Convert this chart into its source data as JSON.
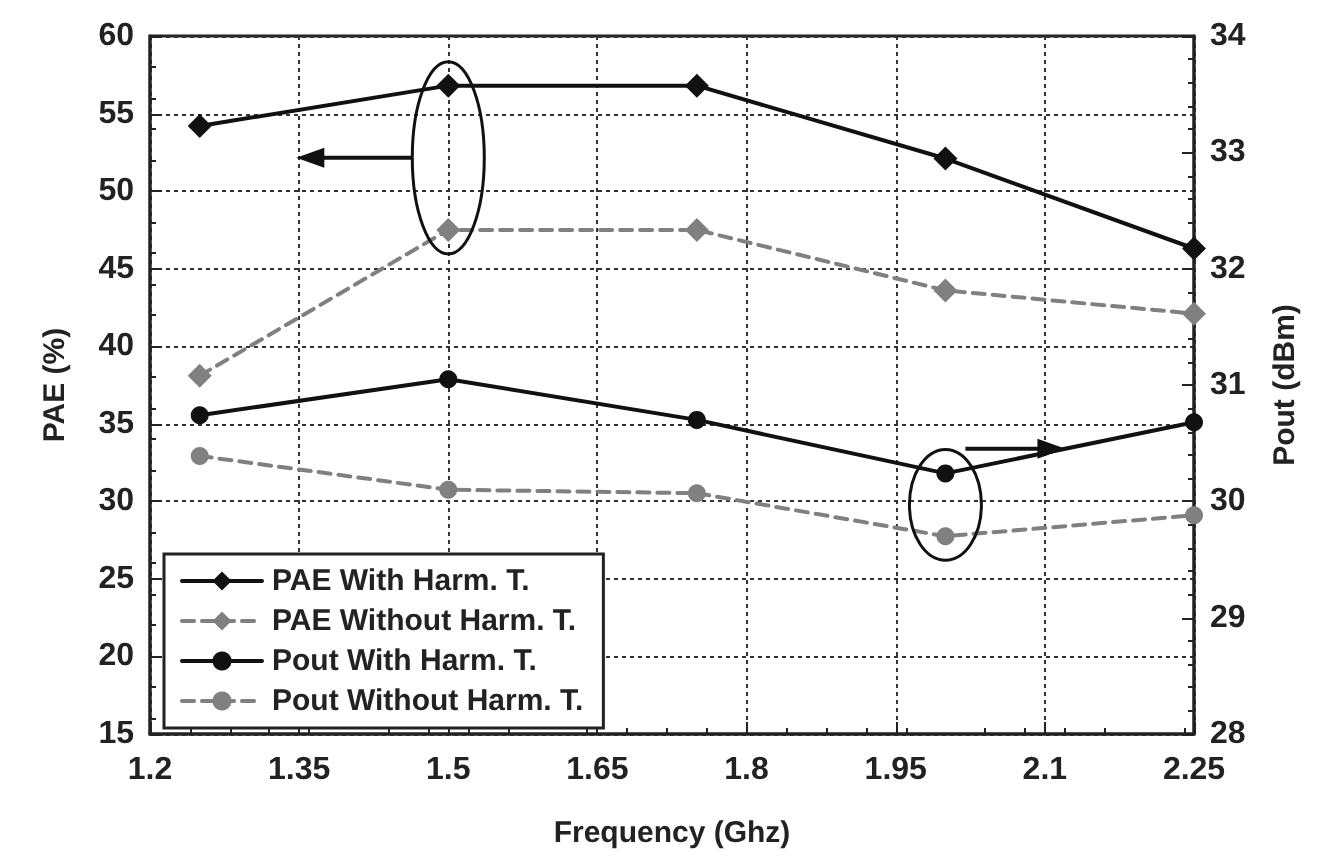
{
  "chart_data": {
    "type": "line",
    "xlabel": "Frequency (Ghz)",
    "ylabel": "PAE (%)",
    "y2label": "Pout (dBm)",
    "x": [
      1.25,
      1.5,
      1.75,
      2.0,
      2.25
    ],
    "series": [
      {
        "name": "PAE With Harm. T.",
        "color": "#111111",
        "marker": "diamond",
        "line_style": "solid",
        "values": [
          54.2,
          56.8,
          56.8,
          52.1,
          46.3
        ]
      },
      {
        "name": "PAE Without Harm. T.",
        "color": "#808080",
        "marker": "diamond",
        "line_style": "dashed",
        "values": [
          38.1,
          47.5,
          47.5,
          43.6,
          42.1
        ]
      },
      {
        "name": "Pout With Harm. T.",
        "color": "#111111",
        "marker": "circle",
        "line_style": "solid",
        "axis": "y2",
        "values": [
          30.74,
          31.05,
          30.7,
          30.24,
          30.68
        ]
      },
      {
        "name": "Pout Without Harm. T.",
        "color": "#808080",
        "marker": "circle",
        "line_style": "dashed",
        "axis": "y2",
        "values": [
          30.39,
          30.1,
          30.07,
          29.7,
          29.88
        ]
      }
    ],
    "xlim": [
      1.2,
      2.25
    ],
    "xticks": [
      1.2,
      1.35,
      1.5,
      1.65,
      1.8,
      1.95,
      2.1,
      2.25
    ],
    "ylim": [
      15,
      60
    ],
    "yticks": [
      15,
      20,
      25,
      30,
      35,
      40,
      45,
      50,
      55,
      60
    ],
    "y2lim": [
      28,
      34
    ],
    "y2ticks": [
      28,
      29,
      30,
      31,
      32,
      33,
      34
    ],
    "grid": true,
    "legend": "bottom left"
  }
}
